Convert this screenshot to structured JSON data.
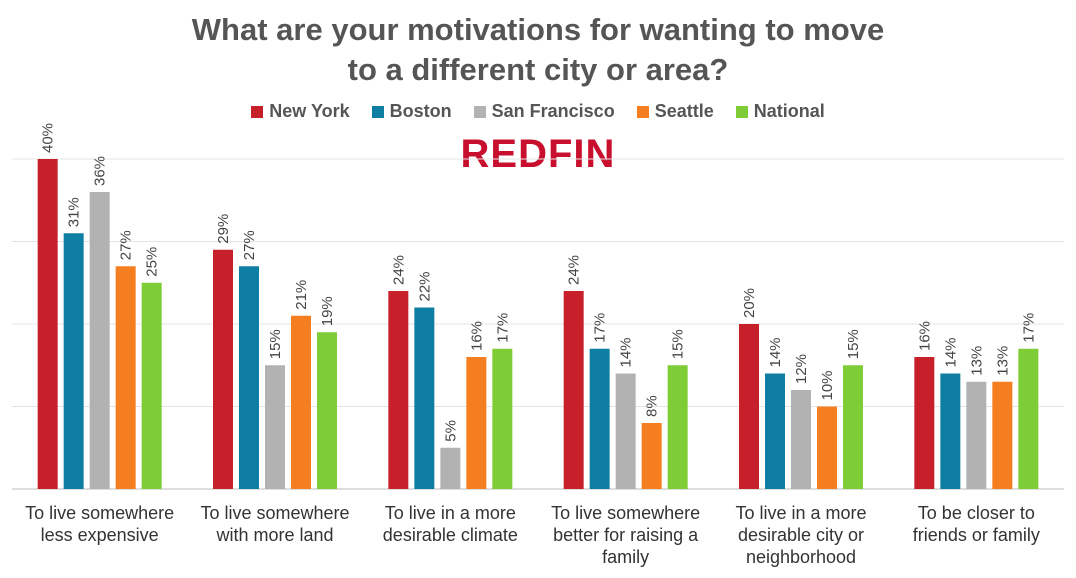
{
  "title_lines": [
    "What are your motivations for wanting to move",
    "to a different city or area?"
  ],
  "logo_text": "REDFIN",
  "chart_data": {
    "type": "bar",
    "title": "What are your motivations for wanting to move to a different city or area?",
    "categories": [
      [
        "To live somewhere",
        "less expensive"
      ],
      [
        "To live somewhere",
        "with more land"
      ],
      [
        "To live in a more",
        "desirable climate"
      ],
      [
        "To live somewhere",
        "better for raising a",
        "family"
      ],
      [
        "To live in a more",
        "desirable city or",
        "neighborhood"
      ],
      [
        "To be closer to",
        "friends or family"
      ]
    ],
    "series": [
      {
        "name": "New York",
        "color": "#c8202b",
        "values": [
          40,
          29,
          24,
          24,
          20,
          16
        ],
        "labels": [
          "40%",
          "29%",
          "24%",
          "24%",
          "20%",
          "16%"
        ]
      },
      {
        "name": "Boston",
        "color": "#0f7ea3",
        "values": [
          31,
          27,
          22,
          17,
          14,
          14
        ],
        "labels": [
          "31%",
          "27%",
          "22%",
          "17%",
          "14%",
          "14%"
        ]
      },
      {
        "name": "San Francisco",
        "color": "#b2b2b2",
        "values": [
          36,
          15,
          5,
          14,
          12,
          13
        ],
        "labels": [
          "36%",
          "15%",
          "5%",
          "14%",
          "12%",
          "13%"
        ]
      },
      {
        "name": "Seattle",
        "color": "#f57f20",
        "values": [
          27,
          21,
          16,
          8,
          10,
          13
        ],
        "labels": [
          "27%",
          "21%",
          "16%",
          "8%",
          "10%",
          "13%"
        ]
      },
      {
        "name": "National",
        "color": "#7ecd36",
        "values": [
          25,
          19,
          17,
          15,
          15,
          17
        ],
        "labels": [
          "25%",
          "19%",
          "17%",
          "15%",
          "15%",
          "17%"
        ]
      }
    ],
    "ylim": [
      0,
      40
    ],
    "grid": true,
    "legend_position": "top"
  }
}
